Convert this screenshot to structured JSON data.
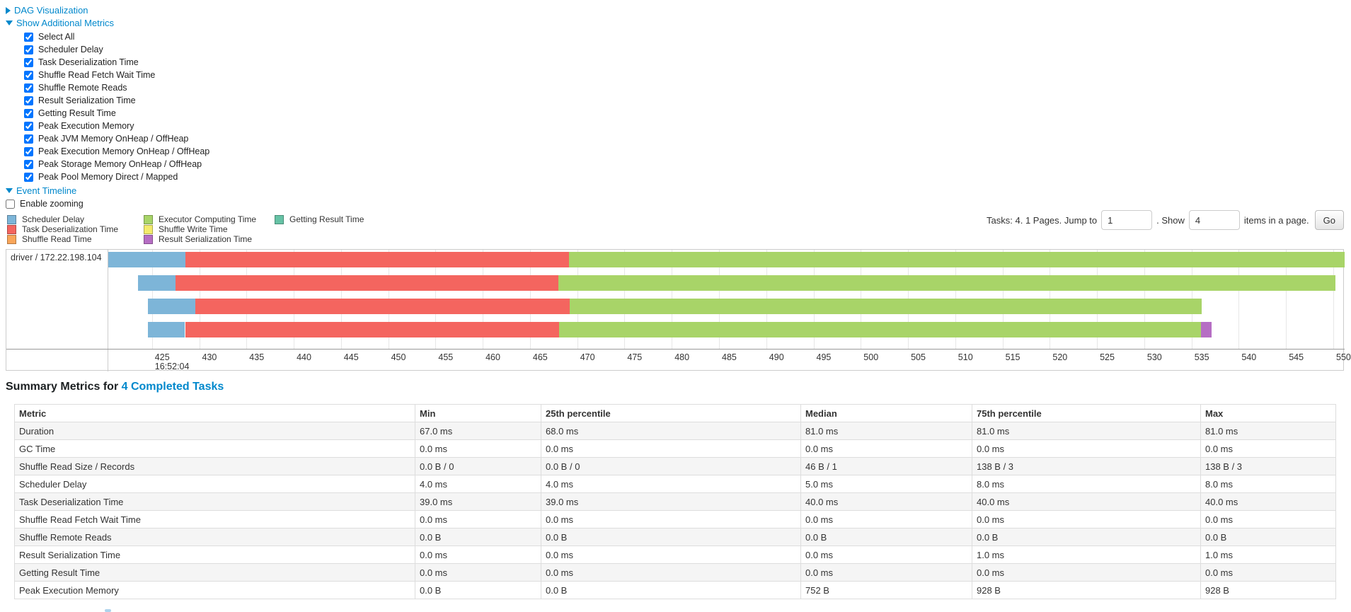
{
  "nav": {
    "dag": {
      "label": "DAG Visualization",
      "state": "collapsed"
    },
    "metrics": {
      "label": "Show Additional Metrics",
      "state": "expanded",
      "items": [
        {
          "label": "Select All",
          "checked": true
        },
        {
          "label": "Scheduler Delay",
          "checked": true
        },
        {
          "label": "Task Deserialization Time",
          "checked": true
        },
        {
          "label": "Shuffle Read Fetch Wait Time",
          "checked": true
        },
        {
          "label": "Shuffle Remote Reads",
          "checked": true
        },
        {
          "label": "Result Serialization Time",
          "checked": true
        },
        {
          "label": "Getting Result Time",
          "checked": true
        },
        {
          "label": "Peak Execution Memory",
          "checked": true
        },
        {
          "label": "Peak JVM Memory OnHeap / OffHeap",
          "checked": true
        },
        {
          "label": "Peak Execution Memory OnHeap / OffHeap",
          "checked": true
        },
        {
          "label": "Peak Storage Memory OnHeap / OffHeap",
          "checked": true
        },
        {
          "label": "Peak Pool Memory Direct / Mapped",
          "checked": true
        }
      ]
    },
    "event_timeline": {
      "label": "Event Timeline",
      "state": "expanded"
    },
    "enable_zooming": {
      "label": "Enable zooming",
      "checked": false
    }
  },
  "colors": {
    "scheduler_delay": "#7DB5D8",
    "task_deserialization": "#F4655F",
    "shuffle_read": "#F9A65A",
    "executor_computing": "#A8D468",
    "shuffle_write": "#F3EB6C",
    "result_serialization": "#B66EC4",
    "getting_result": "#66C2A5"
  },
  "timeline": {
    "legend_columns": [
      [
        {
          "label": "Scheduler Delay",
          "color_key": "scheduler_delay"
        },
        {
          "label": "Task Deserialization Time",
          "color_key": "task_deserialization"
        },
        {
          "label": "Shuffle Read Time",
          "color_key": "shuffle_read"
        }
      ],
      [
        {
          "label": "Executor Computing Time",
          "color_key": "executor_computing"
        },
        {
          "label": "Shuffle Write Time",
          "color_key": "shuffle_write"
        },
        {
          "label": "Result Serialization Time",
          "color_key": "result_serialization"
        }
      ],
      [
        {
          "label": "Getting Result Time",
          "color_key": "getting_result"
        }
      ]
    ],
    "pagination": {
      "summary_text": "Tasks: 4. 1 Pages. Jump to",
      "jump_value": "1",
      "show_label": ". Show",
      "show_value": "4",
      "suffix_text": "items in a page.",
      "go_label": "Go"
    },
    "executor_label": "driver / 172.22.198.104",
    "axis": {
      "domain_start": 420.3,
      "domain_end": 551.2,
      "tick_start": 425,
      "tick_end": 550,
      "tick_step": 5,
      "time_label": "16:52:04",
      "time_label_tick": 425
    },
    "tasks": [
      {
        "row": 0,
        "segments": [
          {
            "type": "scheduler_delay",
            "start": 420.3,
            "end": 428.5
          },
          {
            "type": "task_deserialization",
            "start": 428.5,
            "end": 469.1
          },
          {
            "type": "executor_computing",
            "start": 469.1,
            "end": 551.2
          }
        ]
      },
      {
        "row": 1,
        "segments": [
          {
            "type": "scheduler_delay",
            "start": 423.5,
            "end": 427.5
          },
          {
            "type": "task_deserialization",
            "start": 427.5,
            "end": 468.0
          },
          {
            "type": "executor_computing",
            "start": 468.0,
            "end": 550.2
          }
        ]
      },
      {
        "row": 2,
        "segments": [
          {
            "type": "scheduler_delay",
            "start": 424.6,
            "end": 429.6
          },
          {
            "type": "task_deserialization",
            "start": 429.6,
            "end": 469.2
          },
          {
            "type": "executor_computing",
            "start": 469.2,
            "end": 536.1
          }
        ]
      },
      {
        "row": 3,
        "segments": [
          {
            "type": "scheduler_delay",
            "start": 424.6,
            "end": 428.5
          },
          {
            "type": "task_deserialization",
            "start": 428.5,
            "end": 468.1
          },
          {
            "type": "executor_computing",
            "start": 468.1,
            "end": 536.0
          },
          {
            "type": "result_serialization",
            "start": 536.0,
            "end": 537.1
          }
        ]
      }
    ]
  },
  "summary": {
    "title_prefix": "Summary Metrics for",
    "title_link": "4 Completed Tasks",
    "columns": [
      "Metric",
      "Min",
      "25th percentile",
      "Median",
      "75th percentile",
      "Max"
    ],
    "rows": [
      {
        "metric": "Duration",
        "values": [
          "67.0 ms",
          "68.0 ms",
          "81.0 ms",
          "81.0 ms",
          "81.0 ms"
        ]
      },
      {
        "metric": "GC Time",
        "values": [
          "0.0 ms",
          "0.0 ms",
          "0.0 ms",
          "0.0 ms",
          "0.0 ms"
        ]
      },
      {
        "metric": "Shuffle Read Size / Records",
        "values": [
          "0.0 B / 0",
          "0.0 B / 0",
          "46 B / 1",
          "138 B / 3",
          "138 B / 3"
        ]
      },
      {
        "metric": "Scheduler Delay",
        "values": [
          "4.0 ms",
          "4.0 ms",
          "5.0 ms",
          "8.0 ms",
          "8.0 ms"
        ]
      },
      {
        "metric": "Task Deserialization Time",
        "values": [
          "39.0 ms",
          "39.0 ms",
          "40.0 ms",
          "40.0 ms",
          "40.0 ms"
        ]
      },
      {
        "metric": "Shuffle Read Fetch Wait Time",
        "values": [
          "0.0 ms",
          "0.0 ms",
          "0.0 ms",
          "0.0 ms",
          "0.0 ms"
        ]
      },
      {
        "metric": "Shuffle Remote Reads",
        "values": [
          "0.0 B",
          "0.0 B",
          "0.0 B",
          "0.0 B",
          "0.0 B"
        ]
      },
      {
        "metric": "Result Serialization Time",
        "values": [
          "0.0 ms",
          "0.0 ms",
          "0.0 ms",
          "1.0 ms",
          "1.0 ms"
        ]
      },
      {
        "metric": "Getting Result Time",
        "values": [
          "0.0 ms",
          "0.0 ms",
          "0.0 ms",
          "0.0 ms",
          "0.0 ms"
        ]
      },
      {
        "metric": "Peak Execution Memory",
        "values": [
          "0.0 B",
          "0.0 B",
          "752 B",
          "928 B",
          "928 B"
        ]
      }
    ]
  }
}
